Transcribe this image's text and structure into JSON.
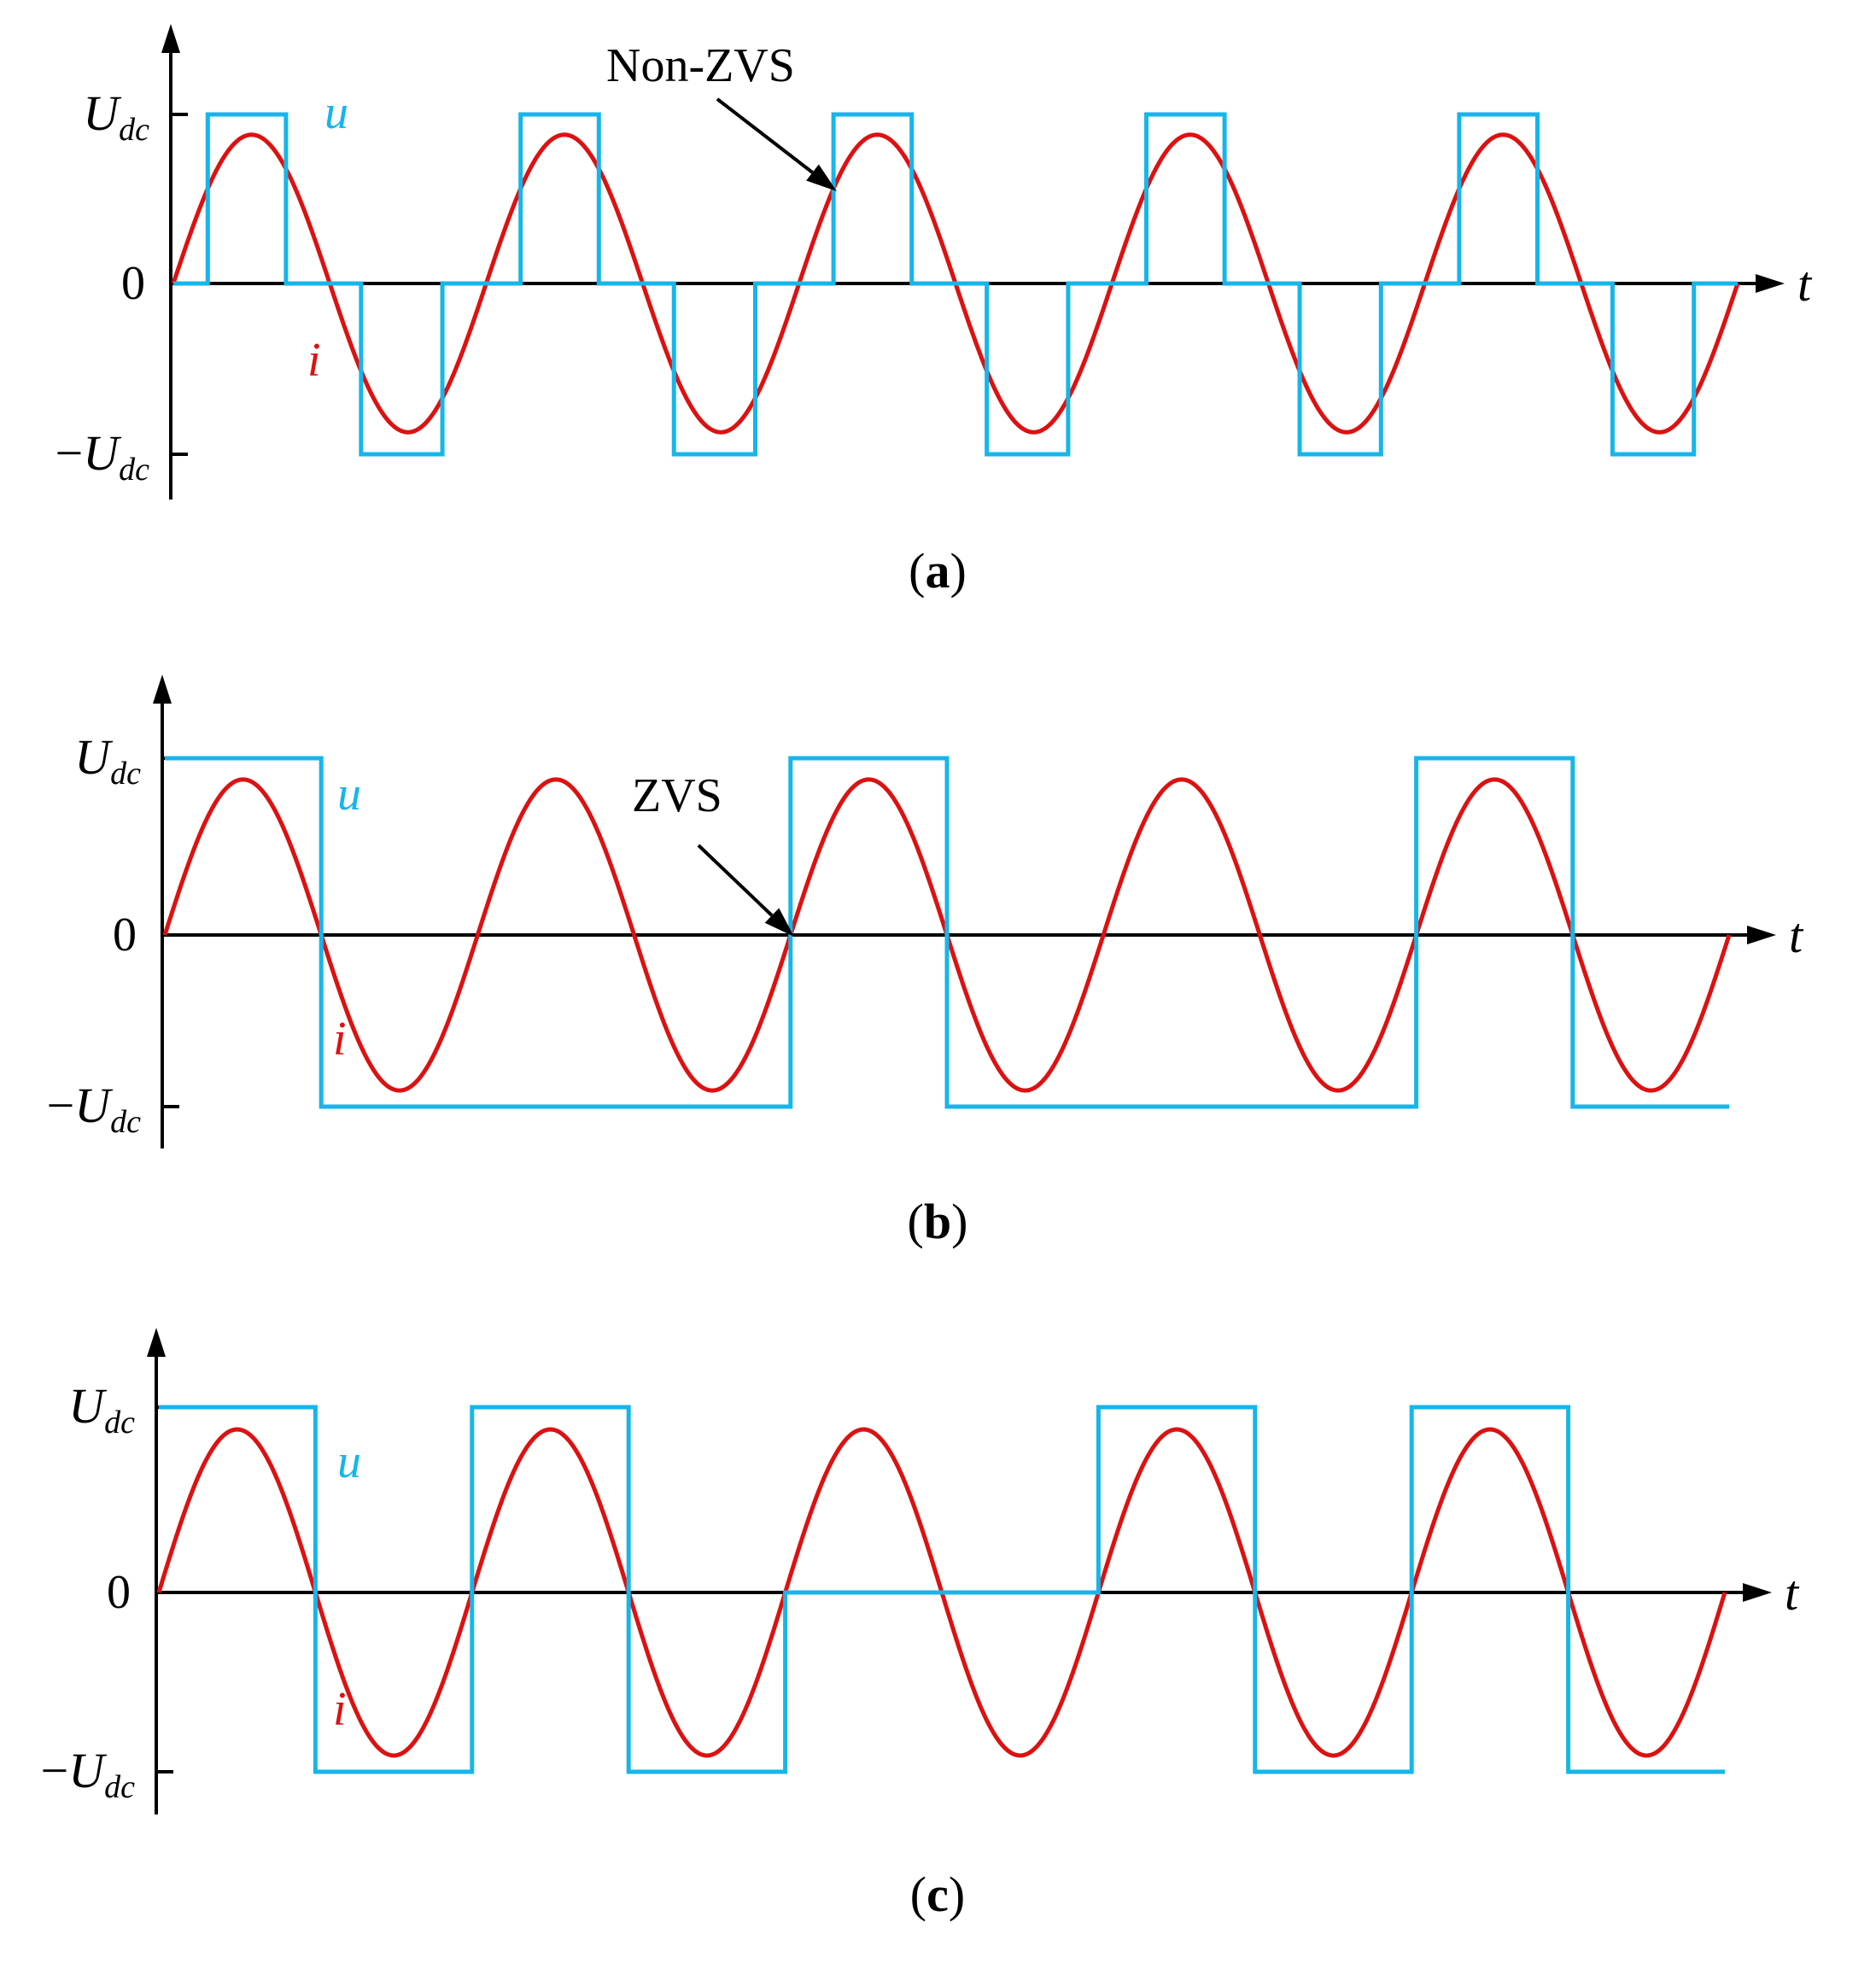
{
  "colors": {
    "voltage": "#15b6ea",
    "current": "#dd1111",
    "axis": "#000000"
  },
  "labels": {
    "upper_tick_main": "U",
    "upper_tick_sub": "dc",
    "zero_tick": "0",
    "lower_tick_minus": "−",
    "lower_tick_main": "U",
    "lower_tick_sub": "dc",
    "time_axis": "t",
    "voltage_name": "u",
    "current_name": "i"
  },
  "panels": [
    {
      "id": "a",
      "caption_open": "(",
      "caption_letter": "a",
      "caption_close": ")",
      "annotation": "Non-ZVS",
      "current": {
        "amplitude_fraction": 0.88,
        "cycles": 5,
        "start_phase": "zero"
      },
      "voltage": {
        "pattern": "three-level pulses",
        "segments": [
          [
            0,
            0.11
          ],
          [
            1,
            0.36
          ],
          [
            0,
            0.6
          ],
          [
            -1,
            0.86
          ],
          [
            0,
            1.11
          ],
          [
            1,
            1.36
          ],
          [
            0,
            1.6
          ],
          [
            -1,
            1.86
          ],
          [
            0,
            2.11
          ],
          [
            1,
            2.36
          ],
          [
            0,
            2.6
          ],
          [
            -1,
            2.86
          ],
          [
            0,
            3.11
          ],
          [
            1,
            3.36
          ],
          [
            0,
            3.6
          ],
          [
            -1,
            3.86
          ],
          [
            0,
            4.11
          ],
          [
            1,
            4.36
          ],
          [
            0,
            4.6
          ],
          [
            -1,
            4.86
          ],
          [
            0,
            5.0
          ]
        ]
      }
    },
    {
      "id": "b",
      "caption_open": "(",
      "caption_letter": "b",
      "caption_close": ")",
      "annotation": "ZVS",
      "current": {
        "amplitude_fraction": 0.88,
        "cycles": 5,
        "start_phase": "zero"
      },
      "voltage": {
        "pattern": "two-level, switching on current zero crossings",
        "segments": [
          [
            1,
            0.5
          ],
          [
            -1,
            2.0
          ],
          [
            1,
            2.5
          ],
          [
            -1,
            4.0
          ],
          [
            1,
            4.5
          ],
          [
            -1,
            5.0
          ]
        ]
      }
    },
    {
      "id": "c",
      "caption_open": "(",
      "caption_letter": "c",
      "caption_close": ")",
      "annotation": "",
      "current": {
        "amplitude_fraction": 0.88,
        "cycles": 5,
        "start_phase": "zero"
      },
      "voltage": {
        "pattern": "two-level with one zero interval",
        "segments": [
          [
            1,
            0.5
          ],
          [
            -1,
            1.0
          ],
          [
            1,
            1.5
          ],
          [
            -1,
            2.0
          ],
          [
            0,
            3.0
          ],
          [
            1,
            3.5
          ],
          [
            -1,
            4.0
          ],
          [
            1,
            4.5
          ],
          [
            -1,
            5.0
          ]
        ]
      }
    }
  ]
}
